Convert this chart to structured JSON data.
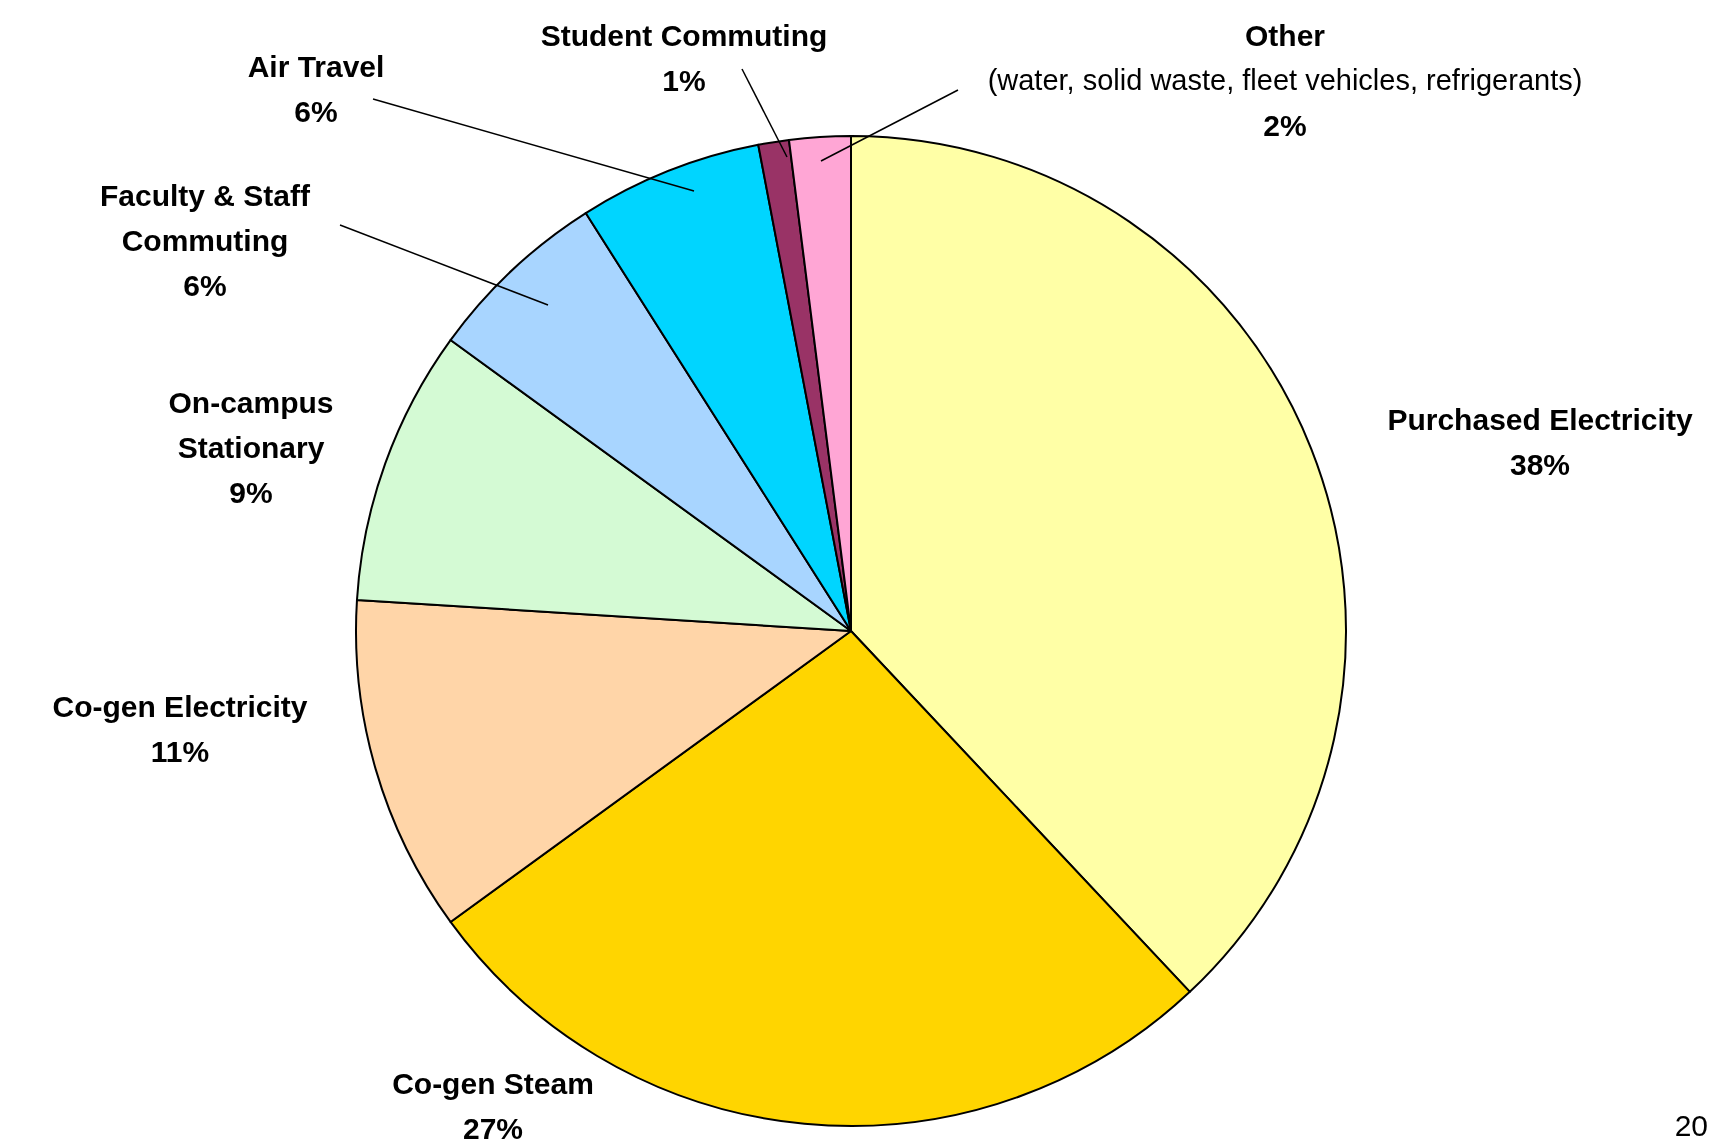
{
  "chart_data": {
    "type": "pie",
    "categories": [
      "Purchased Electricity",
      "Co-gen Steam",
      "Co-gen Electricity",
      "On-campus\nStationary",
      "Faculty & Staff\nCommuting",
      "Air Travel",
      "Student Commuting",
      "Other\n(water, solid waste, fleet vehicles, refrigerants)"
    ],
    "values": [
      38,
      27,
      11,
      9,
      6,
      6,
      1,
      2
    ],
    "colors": [
      "#ffffa6",
      "#ffd500",
      "#ffd5a8",
      "#d4fad4",
      "#a8d5ff",
      "#00d5ff",
      "#993366",
      "#ffa6d5"
    ],
    "value_labels": [
      "38%",
      "27%",
      "11%",
      "9%",
      "6%",
      "6%",
      "1%",
      "2%"
    ],
    "annotations": [
      "20"
    ]
  }
}
